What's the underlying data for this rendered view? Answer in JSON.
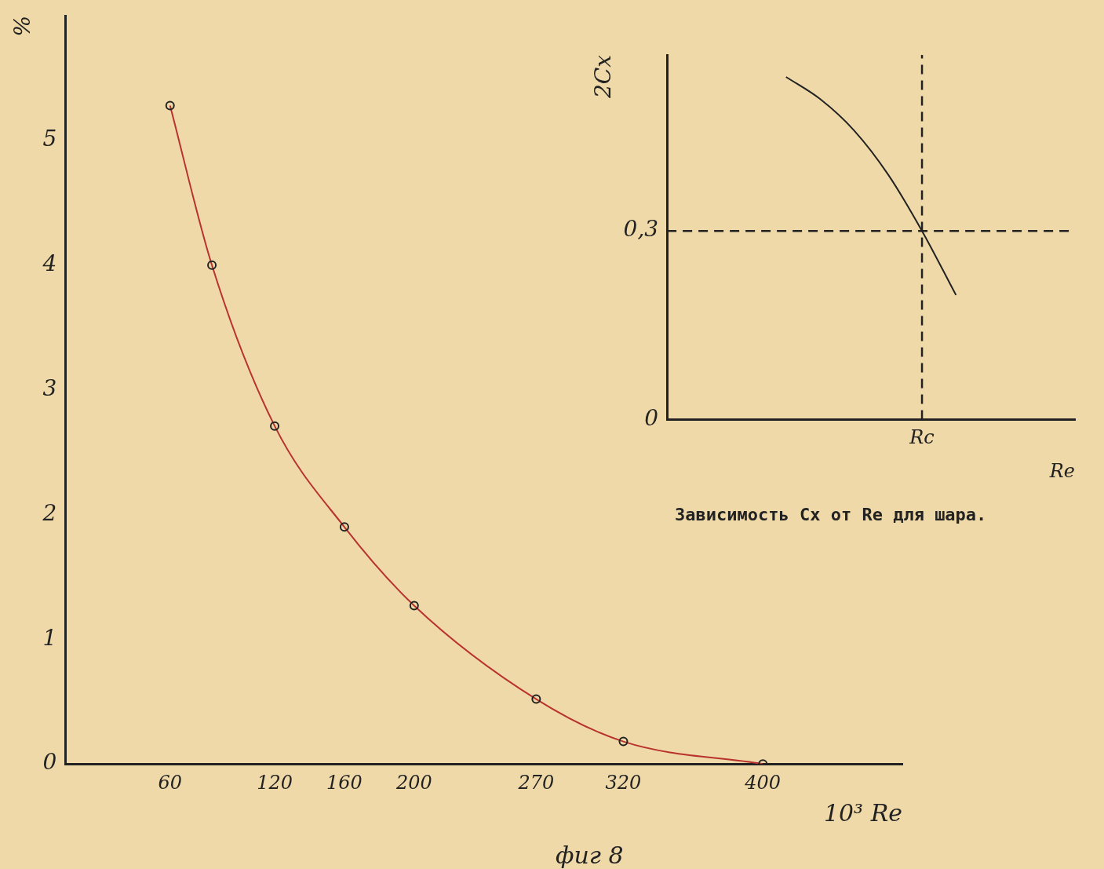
{
  "chart_data": [
    {
      "type": "line",
      "title": "фиг 8",
      "xlabel": "10³ Re",
      "ylabel": "%",
      "x": [
        60,
        84,
        120,
        160,
        200,
        270,
        320,
        400
      ],
      "xlim": [
        0,
        480
      ],
      "xticks": [
        60,
        120,
        160,
        200,
        270,
        320,
        400
      ],
      "ylim": [
        0,
        6
      ],
      "yticks": [
        0,
        1,
        2,
        3,
        4,
        5
      ],
      "grid": false,
      "legend": false,
      "marker": "circle",
      "line_style": "solid",
      "series": [
        {
          "color": "#b8322e",
          "values": [
            5.28,
            4.0,
            2.71,
            1.9,
            1.27,
            0.52,
            0.18,
            0
          ]
        }
      ]
    },
    {
      "type": "line",
      "xlabel": "Re",
      "ylabel": "2Cx",
      "categories": [
        null,
        null,
        null,
        null,
        null,
        null,
        null,
        "Rc",
        null,
        null,
        null,
        null
      ],
      "ylim": [
        0,
        0.58
      ],
      "yticks": [
        0,
        {
          "value": 0.3,
          "label": "0,3"
        }
      ],
      "grid": false,
      "legend": false,
      "marker": "none",
      "line_style": "solid",
      "ref_lines": [
        {
          "axis": "y",
          "value": 0.3,
          "line_style": "dashed"
        },
        {
          "axis": "x",
          "value": "Rc",
          "line_style": "dashed"
        }
      ],
      "annotations": [
        "Зависимость Cx от Re для шара."
      ],
      "series": [
        {
          "color": "#222222",
          "values": [
            null,
            null,
            null,
            0.545,
            0.51,
            0.46,
            0.39,
            0.3,
            0.198,
            null,
            null,
            null
          ]
        }
      ]
    }
  ]
}
